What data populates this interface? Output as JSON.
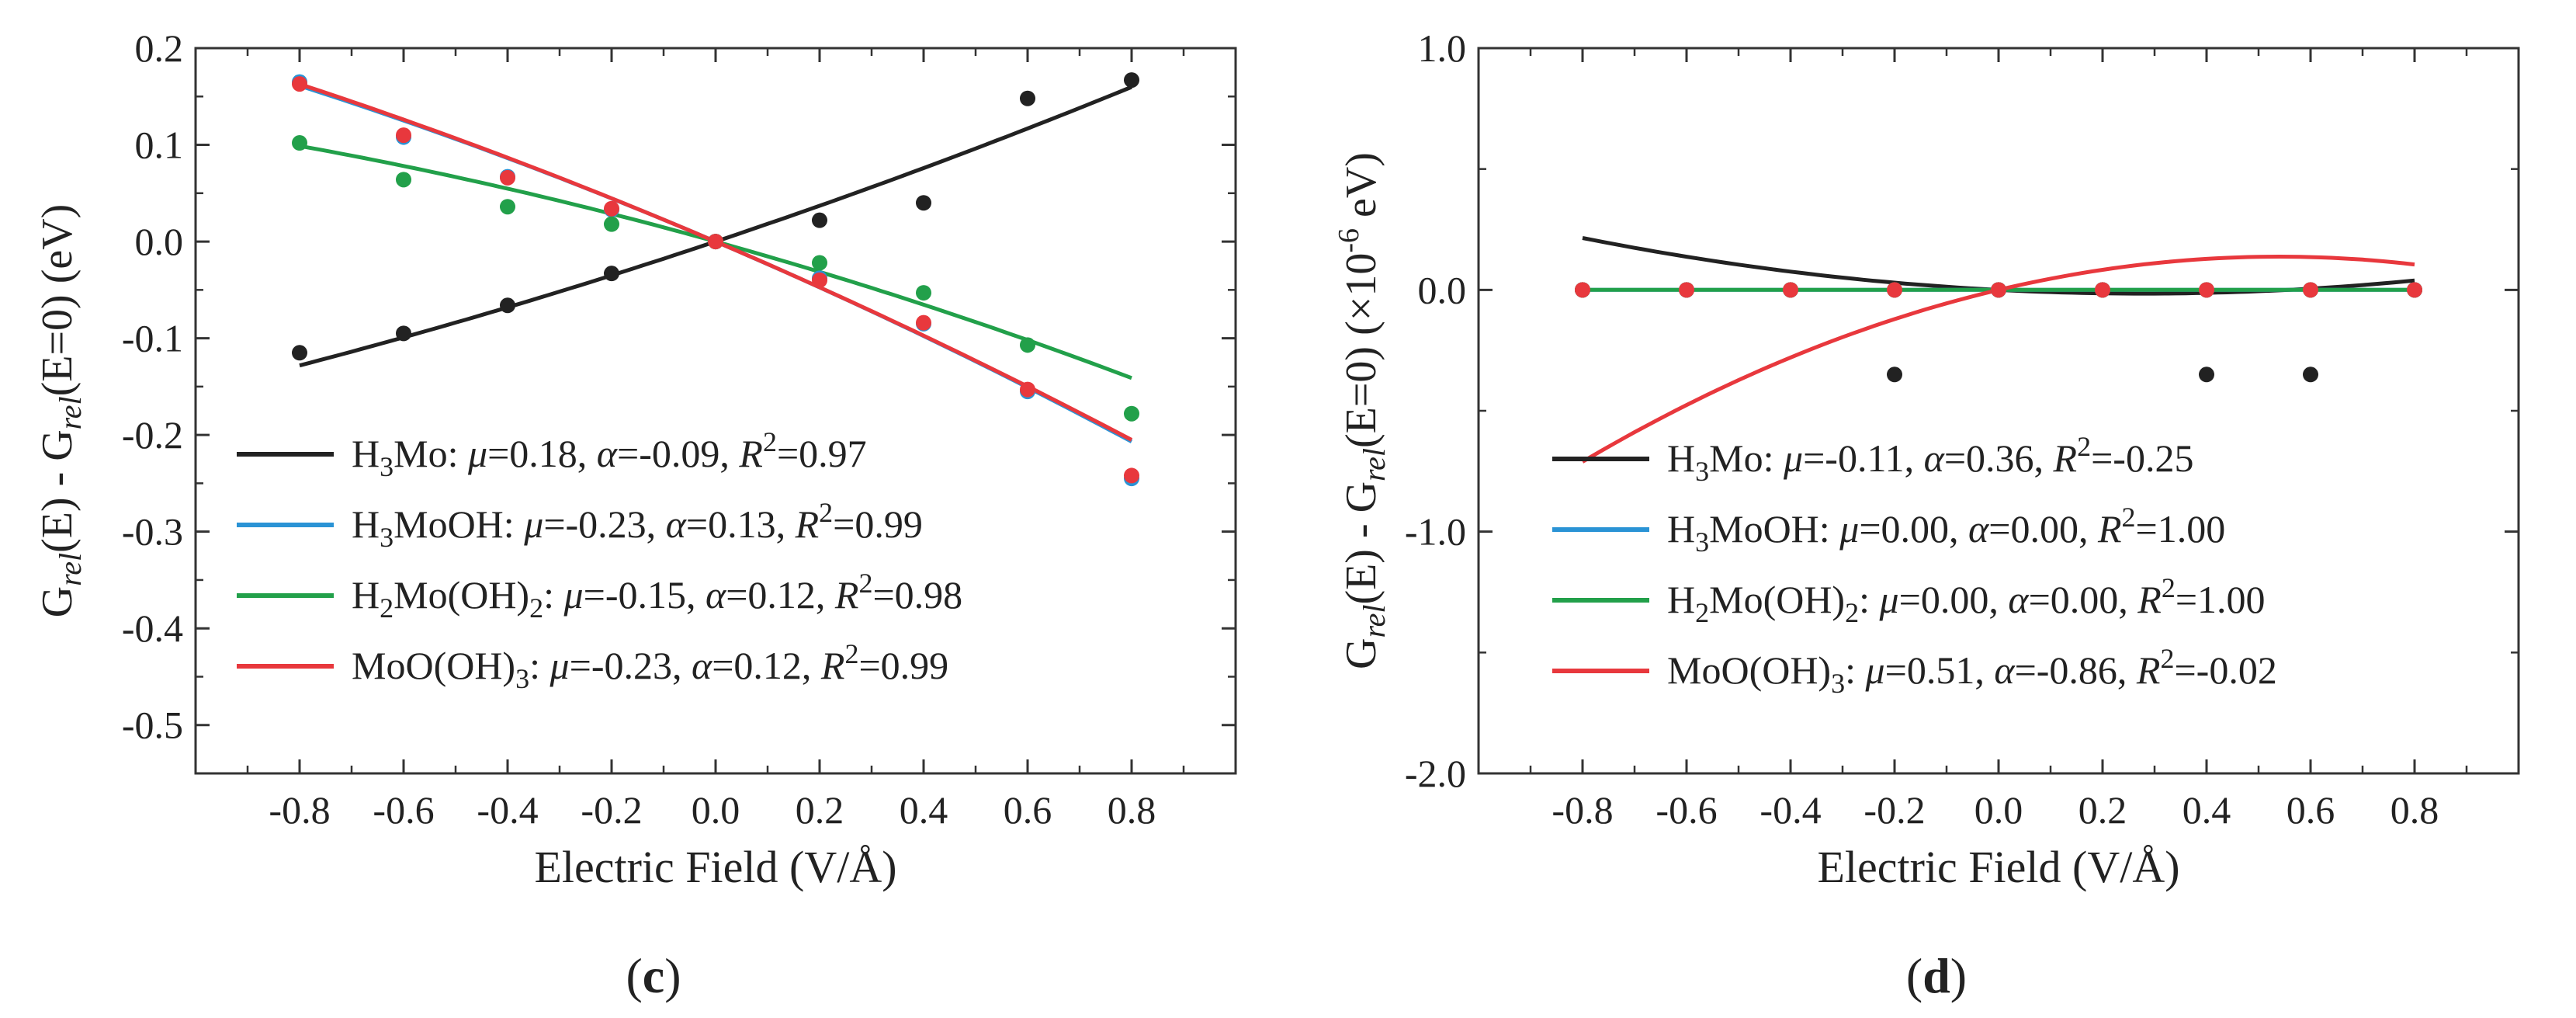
{
  "chart_data": [
    {
      "type": "scatter",
      "panel_label": "c",
      "xlabel": "Electric Field (V/Å)",
      "ylabel": {
        "main": "G",
        "sub1": "rel",
        "mid": "(E) - G",
        "sub2": "rel",
        "tail": "(E=0) (eV)"
      },
      "xlim": [
        -1.0,
        1.0
      ],
      "ylim": [
        -0.55,
        0.2
      ],
      "xticks": [
        -0.8,
        -0.6,
        -0.4,
        -0.2,
        0.0,
        0.2,
        0.4,
        0.6,
        0.8
      ],
      "xtick_labels": [
        "-0.8",
        "-0.6",
        "-0.4",
        "-0.2",
        "0.0",
        "0.2",
        "0.4",
        "0.6",
        "0.8"
      ],
      "yticks": [
        0.2,
        0.1,
        0.0,
        -0.1,
        -0.2,
        -0.3,
        -0.4,
        -0.5
      ],
      "ytick_labels": [
        "0.2",
        "0.1",
        "0.0",
        "-0.1",
        "-0.2",
        "-0.3",
        "-0.4",
        "-0.5"
      ],
      "legend_position": "lower-left",
      "x": [
        -0.8,
        -0.6,
        -0.4,
        -0.2,
        0.0,
        0.2,
        0.4,
        0.6,
        0.8
      ],
      "series": [
        {
          "name": "H3Mo",
          "name_base": "H",
          "name_sub": "3",
          "name_tail": "Mo",
          "color": "#222222",
          "mu": "0.18",
          "alpha": "-0.09",
          "r2": "0.97",
          "values": [
            -0.115,
            -0.095,
            -0.066,
            -0.033,
            0.0,
            0.022,
            0.04,
            0.148,
            0.167
          ],
          "fit_mu": 0.18,
          "fit_alpha": -0.09
        },
        {
          "name": "H3MoOH",
          "name_base": "H",
          "name_sub": "3",
          "name_tail": "MoOH",
          "color": "#2a93d5",
          "mu": "-0.23",
          "alpha": "0.13",
          "r2": "0.99",
          "values": [
            0.165,
            0.108,
            0.067,
            0.033,
            0.0,
            -0.038,
            -0.085,
            -0.155,
            -0.245
          ],
          "fit_mu": -0.23,
          "fit_alpha": 0.13
        },
        {
          "name": "H2Mo(OH)2",
          "name_base": "H",
          "name_sub": "2",
          "name_tail": "Mo(OH)",
          "name_sub2": "2",
          "color": "#22a04a",
          "mu": "-0.15",
          "alpha": "0.12",
          "r2": "0.98",
          "values": [
            0.102,
            0.064,
            0.036,
            0.018,
            0.0,
            -0.022,
            -0.053,
            -0.107,
            -0.178
          ],
          "fit_mu": -0.15,
          "fit_alpha": 0.12
        },
        {
          "name": "MoO(OH)3",
          "name_base": "MoO(OH)",
          "name_sub": "3",
          "name_tail": "",
          "color": "#e8383d",
          "mu": "-0.23",
          "alpha": "0.12",
          "r2": "0.99",
          "values": [
            0.163,
            0.11,
            0.066,
            0.034,
            0.0,
            -0.04,
            -0.084,
            -0.153,
            -0.242
          ],
          "fit_mu": -0.23,
          "fit_alpha": 0.12
        }
      ]
    },
    {
      "type": "scatter",
      "panel_label": "d",
      "xlabel": "Electric Field (V/Å)",
      "ylabel": {
        "main": "G",
        "sub1": "rel",
        "mid": "(E) - G",
        "sub2": "rel",
        "tail": "(E=0) (×10",
        "exp": "-6",
        "end": " eV)"
      },
      "xlim": [
        -1.0,
        1.0
      ],
      "ylim": [
        -2.0,
        1.0
      ],
      "xticks": [
        -0.8,
        -0.6,
        -0.4,
        -0.2,
        0.0,
        0.2,
        0.4,
        0.6,
        0.8
      ],
      "xtick_labels": [
        "-0.8",
        "-0.6",
        "-0.4",
        "-0.2",
        "0.0",
        "0.2",
        "0.4",
        "0.6",
        "0.8"
      ],
      "yticks": [
        1.0,
        0.0,
        -1.0,
        -2.0
      ],
      "ytick_labels": [
        "1.0",
        "0.0",
        "-1.0",
        "-2.0"
      ],
      "legend_position": "lower-left",
      "x": [
        -0.8,
        -0.6,
        -0.4,
        -0.2,
        0.0,
        0.2,
        0.4,
        0.6,
        0.8
      ],
      "series": [
        {
          "name": "H3Mo",
          "name_base": "H",
          "name_sub": "3",
          "name_tail": "Mo",
          "color": "#222222",
          "mu": "-0.11",
          "alpha": "0.36",
          "r2": "-0.25",
          "values": [
            0.0,
            0.0,
            0.0,
            -0.35,
            0.0,
            0.0,
            -0.35,
            -0.35,
            0.0
          ],
          "fit_mu": -0.11,
          "fit_alpha": 0.36
        },
        {
          "name": "H3MoOH",
          "name_base": "H",
          "name_sub": "3",
          "name_tail": "MoOH",
          "color": "#2a93d5",
          "mu": "0.00",
          "alpha": "0.00",
          "r2": "1.00",
          "values": [
            0.0,
            0.0,
            0.0,
            0.0,
            0.0,
            0.0,
            0.0,
            0.0,
            0.0
          ],
          "fit_mu": 0.0,
          "fit_alpha": 0.0
        },
        {
          "name": "H2Mo(OH)2",
          "name_base": "H",
          "name_sub": "2",
          "name_tail": "Mo(OH)",
          "name_sub2": "2",
          "color": "#22a04a",
          "mu": "0.00",
          "alpha": "0.00",
          "r2": "1.00",
          "values": [
            0.0,
            0.0,
            0.0,
            0.0,
            0.0,
            0.0,
            0.0,
            0.0,
            0.0
          ],
          "fit_mu": 0.0,
          "fit_alpha": 0.0
        },
        {
          "name": "MoO(OH)3",
          "name_base": "MoO(OH)",
          "name_sub": "3",
          "name_tail": "",
          "color": "#e8383d",
          "mu": "0.51",
          "alpha": "-0.86",
          "r2": "-0.02",
          "values": [
            0.0,
            0.0,
            0.0,
            0.0,
            0.0,
            0.0,
            0.0,
            0.0,
            0.0
          ],
          "fit_mu": 0.51,
          "fit_alpha": -0.86
        }
      ]
    }
  ]
}
